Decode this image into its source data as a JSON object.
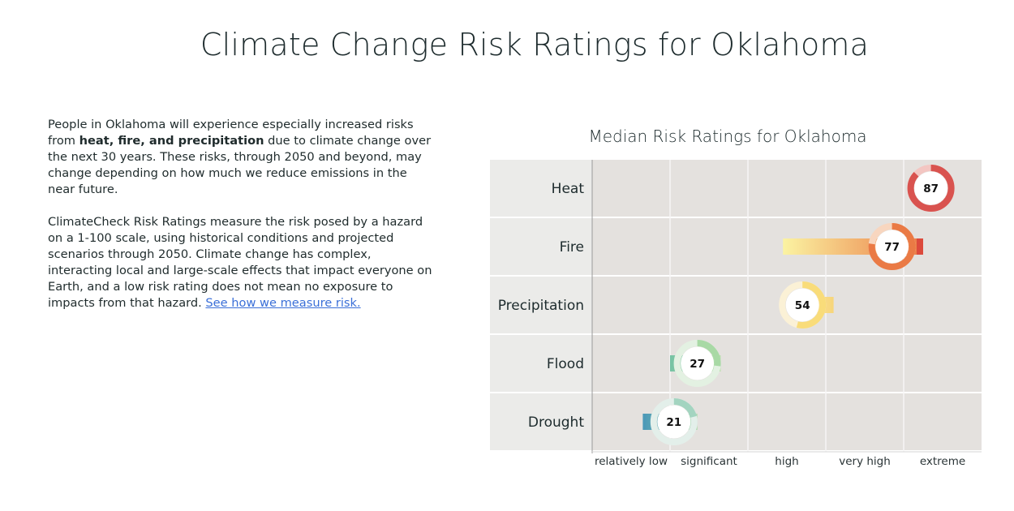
{
  "page": {
    "title": "Climate Change Risk Ratings for Oklahoma"
  },
  "intro": {
    "p1_start": "People in Oklahoma will experience especially increased risks from ",
    "p1_bold": "heat, fire, and precipitation",
    "p1_end": " due to climate change over the next 30 years. These risks, through 2050 and beyond, may change depending on how much we reduce emissions in the near future.",
    "p2_text": "ClimateCheck Risk Ratings measure the risk posed by a hazard on a 1-100 scale, using historical conditions and projected scenarios through 2050. Climate change has complex, interacting local and large-scale effects that impact everyone on Earth, and a low risk rating does not mean no exposure to impacts from that hazard. ",
    "link_text": "See how we measure risk."
  },
  "chart_data": {
    "type": "bar",
    "title": "Median Risk Ratings for Oklahoma",
    "xlim": [
      0,
      100
    ],
    "x_categories": [
      "relatively low",
      "significant",
      "high",
      "very high",
      "extreme"
    ],
    "grid": true,
    "series": [
      {
        "label": "Heat",
        "value": 87,
        "range": [
          84,
          89
        ],
        "color": "#d9534f",
        "light": "#f3c6c2"
      },
      {
        "label": "Fire",
        "value": 77,
        "range": [
          49,
          85
        ],
        "color": "#ea7a45",
        "light": "#f8d6bf"
      },
      {
        "label": "Precipitation",
        "value": 54,
        "range": [
          53,
          62
        ],
        "color": "#f9dc7a",
        "light": "#fbf1d6"
      },
      {
        "label": "Flood",
        "value": 27,
        "range": [
          20,
          33
        ],
        "color": "#a8d9a5",
        "light": "#e3f1e2"
      },
      {
        "label": "Drought",
        "value": 21,
        "range": [
          13,
          27
        ],
        "color": "#a3d4c0",
        "light": "#e3efea"
      }
    ]
  },
  "colors": {
    "grid_bg": "#e4e1de",
    "label_bg": "#ebebe9",
    "flood_range_left": "#76c2a4",
    "drought_range_left": "#4a98b8"
  }
}
